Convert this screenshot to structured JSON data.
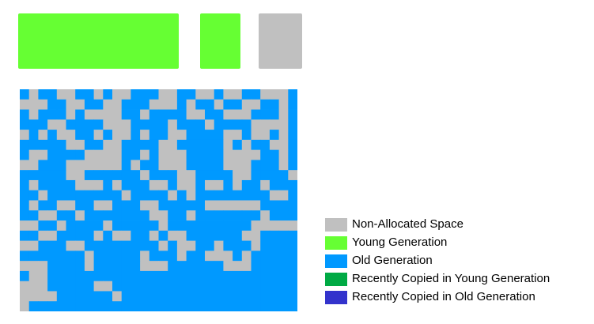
{
  "colors": {
    "non_allocated": "#c0c0c0",
    "young": "#66ff33",
    "old": "#0099ff",
    "copied_young": "#00aa44",
    "copied_old": "#3333cc"
  },
  "legend": [
    {
      "label": "Non-Allocated Space",
      "color": "#c0c0c0"
    },
    {
      "label": "Young Generation",
      "color": "#66ff33"
    },
    {
      "label": "Old Generation",
      "color": "#0099ff"
    },
    {
      "label": "Recently Copied in Young Generation",
      "color": "#00aa44"
    },
    {
      "label": "Recently Copied in Old Generation",
      "color": "#3333cc"
    }
  ],
  "memory_map": [
    "BGBBGGBBGBGGBBBGGBBGGBGGBBGGGB",
    "GGGBBGGBBGGBBBGGGBGBBGBBGGBBGB",
    "BGBBBGBGGGGBBGBBBBGGBBGGGBBBGB",
    "BBBGGBBBBGGGBBBBGBBBGBBBBGGGGB",
    "GBGBGGBBGBGGBGBBGGBBBBGGBGGBGB",
    "BBBBBGGBBGGBBBBGGBBBBBGBGBBGGB",
    "BGGBBBBGGGGBBGBGGGBBBBGGGGBBGB",
    "GGBBBGGGGGGBGBBGGGBBBBGGGBBBGB",
    "BBBBBGGBBBBBBGBBBGGBBBBGGBBBBG",
    "BGBBBBGGGBGBBBGGBGGBGGBGBBGBBB",
    "BBGBBBBBBBBGBBBBGBGBBBBBBBBGGB",
    "BGBBGGBBGGBBBGGBBBBBGGGGGGBBBB",
    "BBGGBBGBBBBBBBGGBBGBBBBBBBGBBB",
    "GGBBGBBBBGBBBBBGBBBBBBBBBGGGGG",
    "BBGGBBBBGBGGBBGBGGBBBBBBGGBBBB",
    "GGBBBGGBBBBBBBBGBGGBBGBBBGBBBB",
    "BBBBBBBGBBBBBGBBBGBBGGGBGBBBBB",
    "GGGBBBBGBBBBBGGGBBBBBBGGGBBBBB",
    "BGGBBBBBBBBBBBBBBBBBBBBBBBBBBB",
    "GGGBBBBBGGBBBBBBBBBBBBBBBBBBBB",
    "GGGGBBBBBBGBBBBBBBBBBBBBBBBBBB",
    "GBBBBBBBBBBBBBBBBBBBBBBBBBBBBB"
  ],
  "memory_map_key": {
    "G": "non_allocated",
    "B": "old"
  }
}
